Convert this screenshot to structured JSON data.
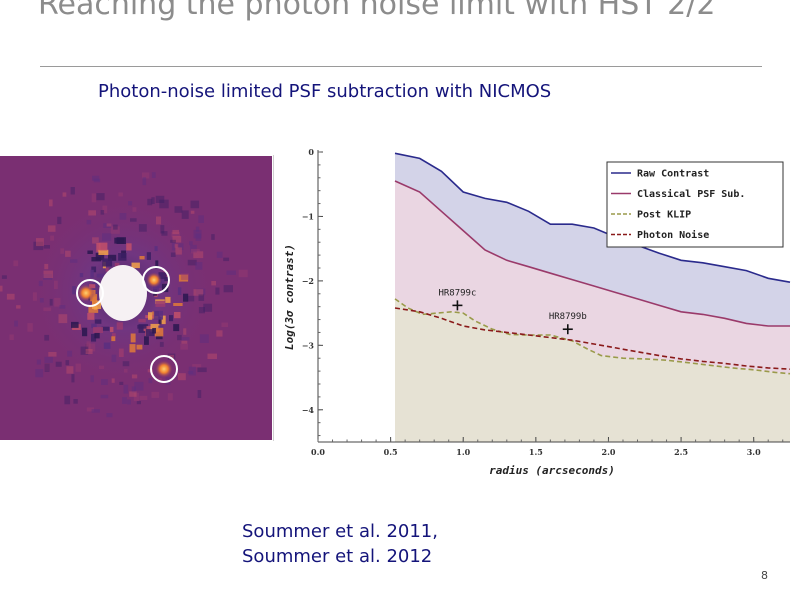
{
  "slide": {
    "title": "Reaching the photon noise limit with HST 2/2",
    "subtitle": "Photon-noise limited PSF subtraction with NICMOS",
    "citation_line1": "Soummer et al. 2011,",
    "citation_line2": "Soummer et al. 2012",
    "page_number": "8"
  },
  "chart_data": {
    "type": "area",
    "title": "",
    "xlabel": "radius (arcseconds)",
    "ylabel": "Log(3σ contrast)",
    "xlim": [
      0,
      3.25
    ],
    "ylim": [
      -4.5,
      0
    ],
    "xticks": [
      0.0,
      0.5,
      1.0,
      1.5,
      2.0,
      2.5,
      3.0
    ],
    "xtick_labels": [
      "0.0",
      "0.5",
      "1.0",
      "1.5",
      "2.0",
      "2.5",
      "3.0"
    ],
    "yticks": [
      0,
      -1,
      -2,
      -3,
      -4
    ],
    "ytick_labels": [
      "0",
      "−1",
      "−2",
      "−3",
      "−4"
    ],
    "grid": false,
    "legend_position": "top-right",
    "series": [
      {
        "name": "Raw Contrast",
        "color": "#2a2a8c",
        "fill": "#d3d3e8",
        "dash": "solid",
        "x": [
          0.53,
          0.7,
          0.85,
          1.0,
          1.15,
          1.3,
          1.45,
          1.6,
          1.75,
          1.9,
          2.05,
          2.2,
          2.35,
          2.5,
          2.65,
          2.8,
          2.95,
          3.1,
          3.25
        ],
        "y": [
          -0.02,
          -0.1,
          -0.3,
          -0.62,
          -0.72,
          -0.78,
          -0.92,
          -1.12,
          -1.12,
          -1.18,
          -1.32,
          -1.45,
          -1.57,
          -1.68,
          -1.72,
          -1.78,
          -1.84,
          -1.96,
          -2.02
        ]
      },
      {
        "name": "Classical PSF Sub.",
        "color": "#9a3a6a",
        "fill": "#ead6e2",
        "dash": "solid",
        "x": [
          0.53,
          0.7,
          0.85,
          1.0,
          1.15,
          1.3,
          1.45,
          1.6,
          1.75,
          1.9,
          2.05,
          2.2,
          2.35,
          2.5,
          2.65,
          2.8,
          2.95,
          3.1,
          3.25
        ],
        "y": [
          -0.45,
          -0.62,
          -0.92,
          -1.22,
          -1.52,
          -1.68,
          -1.78,
          -1.88,
          -1.98,
          -2.08,
          -2.18,
          -2.28,
          -2.38,
          -2.48,
          -2.52,
          -2.58,
          -2.66,
          -2.7,
          -2.7
        ]
      },
      {
        "name": "Post KLIP",
        "color": "#9a9a4a",
        "fill": "#e6e2d4",
        "dash": "dashed",
        "x": [
          0.53,
          0.62,
          0.72,
          0.82,
          0.92,
          1.0,
          1.08,
          1.2,
          1.32,
          1.45,
          1.6,
          1.75,
          1.85,
          1.95,
          2.1,
          2.25,
          2.4,
          2.55,
          2.7,
          2.85,
          3.0,
          3.15,
          3.25
        ],
        "y": [
          -2.28,
          -2.42,
          -2.52,
          -2.5,
          -2.48,
          -2.5,
          -2.62,
          -2.75,
          -2.83,
          -2.84,
          -2.84,
          -2.93,
          -3.05,
          -3.16,
          -3.2,
          -3.21,
          -3.23,
          -3.27,
          -3.31,
          -3.35,
          -3.38,
          -3.42,
          -3.44
        ]
      },
      {
        "name": "Photon Noise",
        "color": "#8a1a1a",
        "fill": "none",
        "dash": "dashed",
        "x": [
          0.53,
          0.7,
          0.85,
          1.0,
          1.15,
          1.3,
          1.45,
          1.6,
          1.75,
          1.9,
          2.05,
          2.2,
          2.35,
          2.5,
          2.65,
          2.8,
          2.95,
          3.1,
          3.25
        ],
        "y": [
          -2.42,
          -2.48,
          -2.58,
          -2.7,
          -2.76,
          -2.8,
          -2.84,
          -2.88,
          -2.92,
          -2.98,
          -3.04,
          -3.1,
          -3.16,
          -3.21,
          -3.25,
          -3.28,
          -3.32,
          -3.35,
          -3.37
        ]
      }
    ],
    "annotations": [
      {
        "text": "HR8799c",
        "x": 0.96,
        "y": -2.38
      },
      {
        "text": "HR8799b",
        "x": 1.72,
        "y": -2.75
      }
    ]
  },
  "image_panel": {
    "background_color": "#7a2f72",
    "circle_color": "#ffffff"
  }
}
